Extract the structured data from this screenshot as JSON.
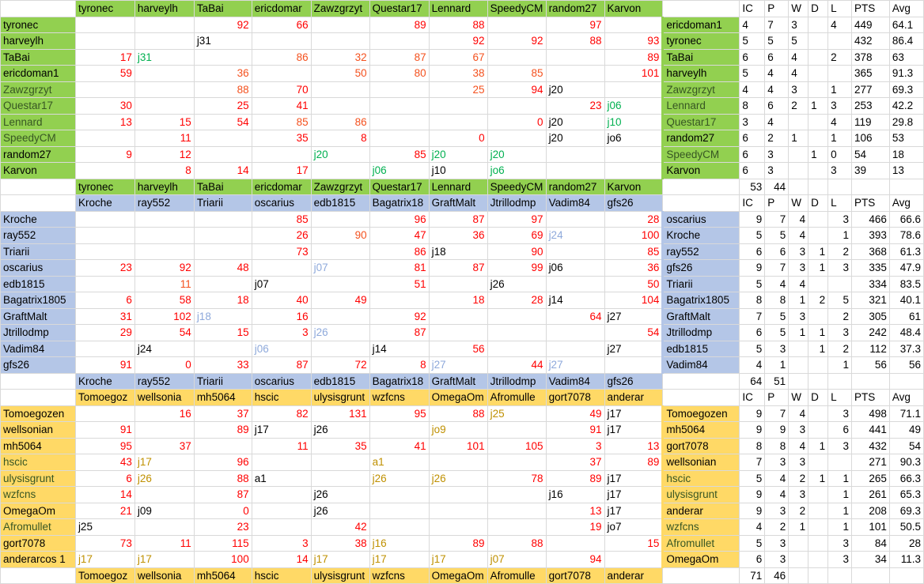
{
  "colors": {
    "green_group": "#92d050",
    "blue_group": "#b4c6e7",
    "yellow_group": "#ffd966",
    "score_red": "#ff0000",
    "score_orange": "#f4511e",
    "note_green": "#00b050",
    "note_lightblue": "#8ea9db",
    "note_gold": "#bf9000"
  },
  "stat_headers": [
    "IC",
    "P",
    "W",
    "D",
    "L",
    "PTS",
    "Avg"
  ],
  "groups": [
    {
      "id": "green",
      "col_headers": [
        "tyronec",
        "harveylh",
        "TaBai",
        "ericdomar",
        "Zawzgrzyt",
        "Questar17",
        "Lennard",
        "SpeedyCM",
        "random27",
        "Karvon"
      ],
      "rows": [
        {
          "name": "tyronec",
          "cells": [
            "",
            "",
            "92",
            "66",
            "",
            "89",
            "88",
            "",
            "97",
            ""
          ]
        },
        {
          "name": "harveylh",
          "cells": [
            "",
            "",
            "j31",
            "",
            "",
            "",
            "92",
            "92",
            "88",
            "93"
          ]
        },
        {
          "name": "TaBai",
          "cells": [
            "17",
            "j31",
            "",
            "86",
            "32",
            "87",
            "67",
            "",
            "",
            "89"
          ]
        },
        {
          "name": "ericdoman1",
          "cells": [
            "59",
            "",
            "36",
            "",
            "50",
            "80",
            "38",
            "85",
            "",
            "101"
          ]
        },
        {
          "name": "Zawzgrzyt",
          "cells": [
            "",
            "",
            "88",
            "70",
            "",
            "",
            "25",
            "94",
            "j20",
            ""
          ]
        },
        {
          "name": "Questar17",
          "cells": [
            "30",
            "",
            "25",
            "41",
            "",
            "",
            "",
            "",
            "23",
            "j06"
          ]
        },
        {
          "name": "Lennard",
          "cells": [
            "13",
            "15",
            "54",
            "85",
            "86",
            "",
            "",
            "0",
            "j20",
            "j10"
          ]
        },
        {
          "name": "SpeedyCM",
          "cells": [
            "",
            "11",
            "",
            "35",
            "8",
            "",
            "0",
            "",
            "j20",
            "jo6"
          ]
        },
        {
          "name": "random27",
          "cells": [
            "9",
            "12",
            "",
            "",
            "j20",
            "85",
            "j20",
            "j20",
            "",
            ""
          ]
        },
        {
          "name": "Karvon",
          "cells": [
            "",
            "8",
            "14",
            "17",
            "",
            "j06",
            "j10",
            "jo6",
            "",
            ""
          ]
        }
      ],
      "standings": [
        {
          "name": "ericdoman1",
          "IC": "4",
          "P": "7",
          "W": "3",
          "D": "",
          "L": "4",
          "PTS": "449",
          "Avg": "64.1"
        },
        {
          "name": "tyronec",
          "IC": "5",
          "P": "5",
          "W": "5",
          "D": "",
          "L": "",
          "PTS": "432",
          "Avg": "86.4"
        },
        {
          "name": "TaBai",
          "IC": "6",
          "P": "6",
          "W": "4",
          "D": "",
          "L": "2",
          "PTS": "378",
          "Avg": "63"
        },
        {
          "name": "harveylh",
          "IC": "5",
          "P": "4",
          "W": "4",
          "D": "",
          "L": "",
          "PTS": "365",
          "Avg": "91.3"
        },
        {
          "name": "Zawzgrzyt",
          "IC": "4",
          "P": "4",
          "W": "3",
          "D": "",
          "L": "1",
          "PTS": "277",
          "Avg": "69.3"
        },
        {
          "name": "Lennard",
          "IC": "8",
          "P": "6",
          "W": "2",
          "D": "1",
          "L": "3",
          "PTS": "253",
          "Avg": "42.2"
        },
        {
          "name": "Questar17",
          "IC": "3",
          "P": "4",
          "W": "",
          "D": "",
          "L": "4",
          "PTS": "119",
          "Avg": "29.8"
        },
        {
          "name": "random27",
          "IC": "6",
          "P": "2",
          "W": "1",
          "D": "",
          "L": "1",
          "PTS": "106",
          "Avg": "53"
        },
        {
          "name": "SpeedyCM",
          "IC": "6",
          "P": "3",
          "W": "",
          "D": "1",
          "L": "0",
          "PTS": "54",
          "Avg": "18"
        },
        {
          "name": "Karvon",
          "IC": "6",
          "P": "3",
          "W": "",
          "D": "",
          "L": "3",
          "PTS": "39",
          "Avg": "13"
        }
      ],
      "totals": {
        "IC": "53",
        "P": "44"
      }
    },
    {
      "id": "blue",
      "col_headers": [
        "Kroche",
        "ray552",
        "Triarii",
        "oscarius",
        "edb1815",
        "Bagatrix18",
        "GraftMalt",
        "Jtrillodmp",
        "Vadim84",
        "gfs26"
      ],
      "rows": [
        {
          "name": "Kroche",
          "cells": [
            "",
            "",
            "",
            "85",
            "",
            "96",
            "87",
            "97",
            "",
            "28"
          ]
        },
        {
          "name": "ray552",
          "cells": [
            "",
            "",
            "",
            "26",
            "90",
            "47",
            "36",
            "69",
            "j24",
            "100"
          ]
        },
        {
          "name": "Triarii",
          "cells": [
            "",
            "",
            "",
            "73",
            "",
            "86",
            "j18",
            "90",
            "",
            "85"
          ]
        },
        {
          "name": "oscarius",
          "cells": [
            "23",
            "92",
            "48",
            "",
            "j07",
            "81",
            "87",
            "99",
            "j06",
            "36"
          ]
        },
        {
          "name": "edb1815",
          "cells": [
            "",
            "11",
            "",
            "j07",
            "",
            "51",
            "",
            "j26",
            "",
            "50"
          ]
        },
        {
          "name": "Bagatrix1805",
          "cells": [
            "6",
            "58",
            "18",
            "40",
            "49",
            "",
            "18",
            "28",
            "j14",
            "104"
          ]
        },
        {
          "name": "GraftMalt",
          "cells": [
            "31",
            "102",
            "j18",
            "16",
            "",
            "92",
            "",
            "",
            "64",
            "j27"
          ]
        },
        {
          "name": "Jtrillodmp",
          "cells": [
            "29",
            "54",
            "15",
            "3",
            "j26",
            "87",
            "",
            "",
            "",
            "54"
          ]
        },
        {
          "name": "Vadim84",
          "cells": [
            "",
            "j24",
            "",
            "j06",
            "",
            "j14",
            "56",
            "",
            "",
            "j27"
          ]
        },
        {
          "name": "gfs26",
          "cells": [
            "91",
            "0",
            "33",
            "87",
            "72",
            "8",
            "j27",
            "44",
            "j27",
            ""
          ]
        }
      ],
      "standings": [
        {
          "name": "oscarius",
          "IC": "9",
          "P": "7",
          "W": "4",
          "D": "",
          "L": "3",
          "PTS": "466",
          "Avg": "66.6"
        },
        {
          "name": "Kroche",
          "IC": "5",
          "P": "5",
          "W": "4",
          "D": "",
          "L": "1",
          "PTS": "393",
          "Avg": "78.6"
        },
        {
          "name": "ray552",
          "IC": "6",
          "P": "6",
          "W": "3",
          "D": "1",
          "L": "2",
          "PTS": "368",
          "Avg": "61.3"
        },
        {
          "name": "gfs26",
          "IC": "9",
          "P": "7",
          "W": "3",
          "D": "1",
          "L": "3",
          "PTS": "335",
          "Avg": "47.9"
        },
        {
          "name": "Triarii",
          "IC": "5",
          "P": "4",
          "W": "4",
          "D": "",
          "L": "",
          "PTS": "334",
          "Avg": "83.5"
        },
        {
          "name": "Bagatrix1805",
          "IC": "8",
          "P": "8",
          "W": "1",
          "D": "2",
          "L": "5",
          "PTS": "321",
          "Avg": "40.1"
        },
        {
          "name": "GraftMalt",
          "IC": "7",
          "P": "5",
          "W": "3",
          "D": "",
          "L": "2",
          "PTS": "305",
          "Avg": "61"
        },
        {
          "name": "Jtrillodmp",
          "IC": "6",
          "P": "5",
          "W": "1",
          "D": "1",
          "L": "3",
          "PTS": "242",
          "Avg": "48.4"
        },
        {
          "name": "edb1815",
          "IC": "5",
          "P": "3",
          "W": "",
          "D": "1",
          "L": "2",
          "PTS": "112",
          "Avg": "37.3"
        },
        {
          "name": "Vadim84",
          "IC": "4",
          "P": "1",
          "W": "",
          "D": "",
          "L": "1",
          "PTS": "56",
          "Avg": "56"
        }
      ],
      "totals": {
        "IC": "64",
        "P": "51"
      }
    },
    {
      "id": "yellow",
      "col_headers": [
        "Tomoegoz",
        "wellsonia",
        "mh5064",
        "hscic",
        "ulysisgrunt",
        "wzfcns",
        "OmegaOm",
        "Afromulle",
        "gort7078",
        "anderar"
      ],
      "rows": [
        {
          "name": "Tomoegozen",
          "cells": [
            "",
            "16",
            "37",
            "82",
            "131",
            "95",
            "88",
            "j25",
            "49",
            "j17"
          ]
        },
        {
          "name": "wellsonian",
          "cells": [
            "91",
            "",
            "89",
            "j17",
            "j26",
            "",
            "jo9",
            "",
            "91",
            "j17"
          ]
        },
        {
          "name": "mh5064",
          "cells": [
            "95",
            "37",
            "",
            "11",
            "35",
            "41",
            "101",
            "105",
            "3",
            "13"
          ]
        },
        {
          "name": "hscic",
          "cells": [
            "43",
            "j17",
            "96",
            "",
            "",
            "a1",
            "",
            "",
            "37",
            "89"
          ]
        },
        {
          "name": "ulysisgrunt",
          "cells": [
            "6",
            "j26",
            "88",
            "a1",
            "",
            "j26",
            "j26",
            "78",
            "89",
            "j17"
          ]
        },
        {
          "name": "wzfcns",
          "cells": [
            "14",
            "",
            "87",
            "",
            "j26",
            "",
            "",
            "",
            "j16",
            "j17"
          ]
        },
        {
          "name": "OmegaOm",
          "cells": [
            "21",
            "j09",
            "0",
            "",
            "j26",
            "",
            "",
            "",
            "13",
            "j17"
          ]
        },
        {
          "name": "Afromullet",
          "cells": [
            "j25",
            "",
            "23",
            "",
            "42",
            "",
            "",
            "",
            "19",
            "jo7"
          ]
        },
        {
          "name": "gort7078",
          "cells": [
            "73",
            "11",
            "115",
            "3",
            "38",
            "j16",
            "89",
            "88",
            "",
            "15"
          ]
        },
        {
          "name": "anderarcos 1",
          "cells": [
            "j17",
            "j17",
            "100",
            "14",
            "j17",
            "j17",
            "j17",
            "j07",
            "94",
            ""
          ]
        }
      ],
      "standings": [
        {
          "name": "Tomoegozen",
          "IC": "9",
          "P": "7",
          "W": "4",
          "D": "",
          "L": "3",
          "PTS": "498",
          "Avg": "71.1"
        },
        {
          "name": "mh5064",
          "IC": "9",
          "P": "9",
          "W": "3",
          "D": "",
          "L": "6",
          "PTS": "441",
          "Avg": "49"
        },
        {
          "name": "gort7078",
          "IC": "8",
          "P": "8",
          "W": "4",
          "D": "1",
          "L": "3",
          "PTS": "432",
          "Avg": "54"
        },
        {
          "name": "wellsonian",
          "IC": "7",
          "P": "3",
          "W": "3",
          "D": "",
          "L": "",
          "PTS": "271",
          "Avg": "90.3"
        },
        {
          "name": "hscic",
          "IC": "5",
          "P": "4",
          "W": "2",
          "D": "1",
          "L": "1",
          "PTS": "265",
          "Avg": "66.3"
        },
        {
          "name": "ulysisgrunt",
          "IC": "9",
          "P": "4",
          "W": "3",
          "D": "",
          "L": "1",
          "PTS": "261",
          "Avg": "65.3"
        },
        {
          "name": "anderar",
          "IC": "9",
          "P": "3",
          "W": "2",
          "D": "",
          "L": "1",
          "PTS": "208",
          "Avg": "69.3"
        },
        {
          "name": "wzfcns",
          "IC": "4",
          "P": "2",
          "W": "1",
          "D": "",
          "L": "1",
          "PTS": "101",
          "Avg": "50.5"
        },
        {
          "name": "Afromullet",
          "IC": "5",
          "P": "3",
          "W": "",
          "D": "",
          "L": "3",
          "PTS": "84",
          "Avg": "28"
        },
        {
          "name": "OmegaOm",
          "IC": "6",
          "P": "3",
          "W": "",
          "D": "",
          "L": "3",
          "PTS": "34",
          "Avg": "11.3"
        }
      ],
      "totals": {
        "IC": "71",
        "P": "46"
      }
    }
  ]
}
